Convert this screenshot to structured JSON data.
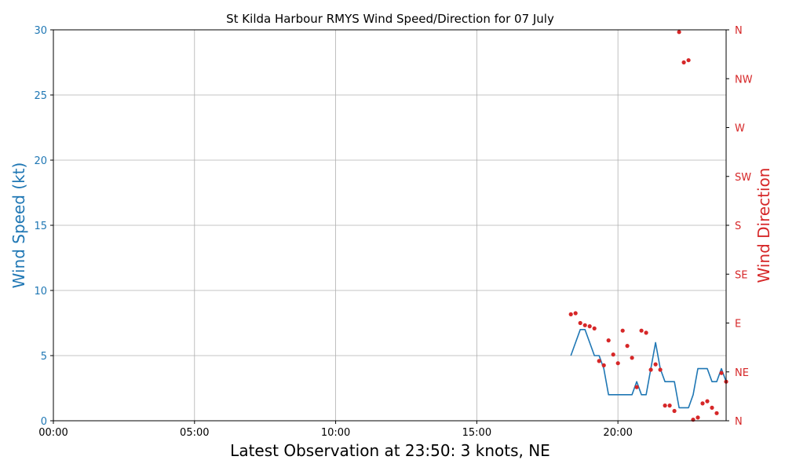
{
  "chart_data": {
    "type": "line",
    "title": "St Kilda Harbour RMYS Wind Speed/Direction for 07 July",
    "xlabel": "Latest Observation at 23:50: 3 knots, NE",
    "ylabel": "Wind Speed (kt)",
    "y2label": "Wind Direction",
    "xlim": [
      "00:00",
      "23:50"
    ],
    "ylim": [
      0,
      30
    ],
    "y2lim": [
      0,
      360
    ],
    "x_ticks": [
      "00:00",
      "05:00",
      "10:00",
      "15:00",
      "20:00"
    ],
    "y_ticks": [
      "0",
      "5",
      "10",
      "15",
      "20",
      "25",
      "30"
    ],
    "y2_ticks": [
      "N",
      "NE",
      "E",
      "SE",
      "S",
      "SW",
      "W",
      "NW",
      "N"
    ],
    "grid": true,
    "colors": {
      "speed": "#1f77b4",
      "direction": "#d62728",
      "grid": "#b0b0b0"
    },
    "series": [
      {
        "role": "speed",
        "axis": "left",
        "style": "line",
        "x": [
          "18:20",
          "18:30",
          "18:40",
          "18:50",
          "19:00",
          "19:10",
          "19:20",
          "19:30",
          "19:40",
          "19:50",
          "20:00",
          "20:10",
          "20:20",
          "20:30",
          "20:40",
          "20:50",
          "21:00",
          "21:10",
          "21:20",
          "21:30",
          "21:40",
          "21:50",
          "22:00",
          "22:10",
          "22:20",
          "22:30",
          "22:40",
          "22:50",
          "23:00",
          "23:10",
          "23:20",
          "23:30",
          "23:40",
          "23:50"
        ],
        "values": [
          5,
          6,
          7,
          7,
          6,
          5,
          5,
          4,
          2,
          2,
          2,
          2,
          2,
          2,
          3,
          2,
          2,
          4,
          6,
          4,
          3,
          3,
          3,
          1,
          1,
          1,
          2,
          4,
          4,
          4,
          3,
          3,
          4,
          3
        ]
      },
      {
        "role": "direction",
        "axis": "right",
        "style": "scatter",
        "x": [
          "18:20",
          "18:30",
          "18:40",
          "18:50",
          "19:00",
          "19:10",
          "19:20",
          "19:30",
          "19:40",
          "19:50",
          "20:00",
          "20:10",
          "20:20",
          "20:30",
          "20:40",
          "20:50",
          "21:00",
          "21:10",
          "21:20",
          "21:30",
          "21:40",
          "21:50",
          "22:00",
          "22:10",
          "22:20",
          "22:30",
          "22:40",
          "22:50",
          "23:00",
          "23:10",
          "23:20",
          "23:30",
          "23:40",
          "23:50"
        ],
        "values": [
          98,
          99,
          90,
          88,
          87,
          85,
          55,
          51,
          74,
          61,
          53,
          83,
          69,
          58,
          31,
          83,
          81,
          47,
          52,
          47,
          14,
          14,
          9,
          358,
          330,
          332,
          1,
          3,
          16,
          18,
          12,
          7,
          44,
          36
        ]
      }
    ]
  }
}
